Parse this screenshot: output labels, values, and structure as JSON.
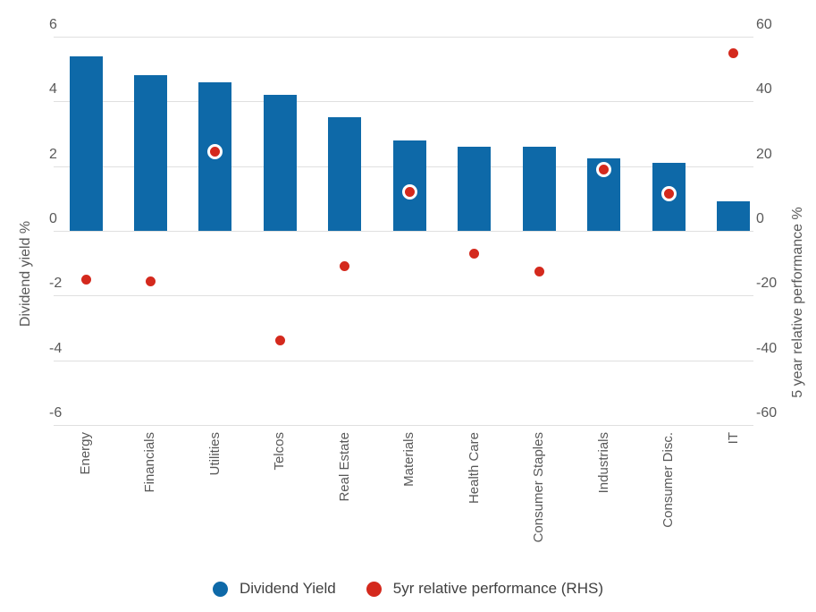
{
  "chart_data": {
    "type": "bar",
    "subtype": "combo-bar-scatter",
    "categories": [
      "Energy",
      "Financials",
      "Utilities",
      "Telcos",
      "Real Estate",
      "Materials",
      "Health Care",
      "Consumer Staples",
      "Industrials",
      "Consumer Disc.",
      "IT"
    ],
    "series": [
      {
        "name": "Dividend Yield",
        "type": "bar",
        "axis": "left",
        "color": "#0e69a8",
        "values": [
          5.4,
          4.8,
          4.6,
          4.2,
          3.5,
          2.8,
          2.6,
          2.6,
          2.25,
          2.1,
          0.9
        ]
      },
      {
        "name": "5yr relative performance (RHS)",
        "type": "scatter",
        "axis": "right",
        "color": "#d4291d",
        "values": [
          -15,
          -15.5,
          24.5,
          -34,
          -11,
          12,
          -7,
          -12.5,
          19,
          11.5,
          55
        ]
      }
    ],
    "left_axis": {
      "label": "Dividend yield %",
      "min": -6,
      "max": 6,
      "ticks": [
        6,
        4,
        2,
        0,
        -2,
        -4,
        -6
      ]
    },
    "right_axis": {
      "label": "5 year relative performance %",
      "min": -60,
      "max": 60,
      "ticks": [
        60,
        40,
        20,
        0,
        -20,
        -40,
        -60
      ]
    },
    "grid": true,
    "legend_position": "bottom"
  }
}
